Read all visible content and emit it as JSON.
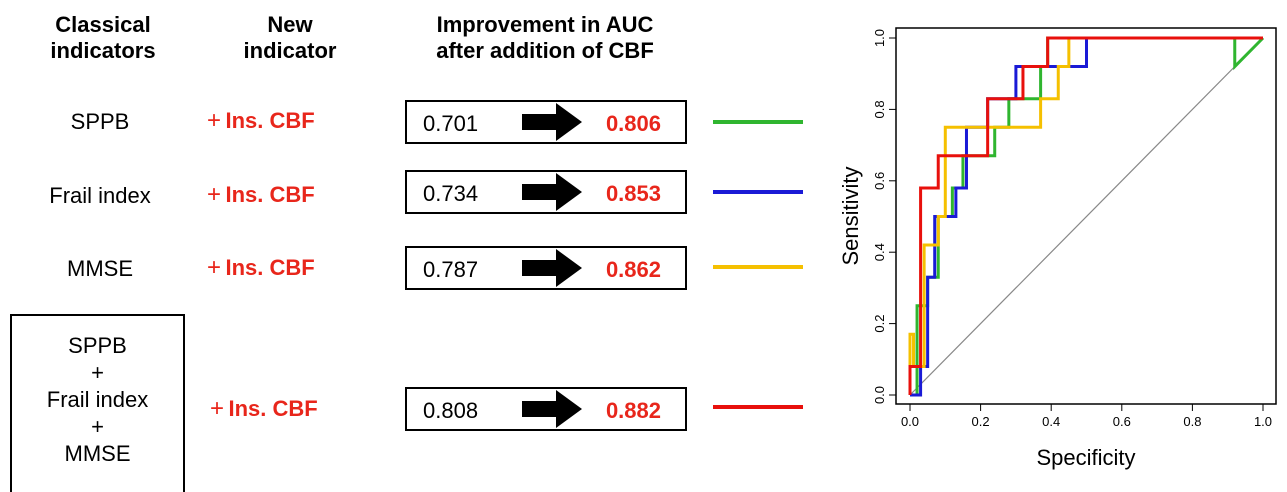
{
  "headers": {
    "classical": "Classical indicators",
    "classical_l1": "Classical",
    "classical_l2": "indicators",
    "new_l1": "New",
    "new_l2": "indicator",
    "improvement_l1": "Improvement in AUC",
    "improvement_l2": "after addition of CBF"
  },
  "rows": [
    {
      "indicator": "SPPB",
      "plus": "+",
      "new": "Ins. CBF",
      "auc_base": "0.701",
      "auc_new": "0.806",
      "color": "#2fb52f"
    },
    {
      "indicator": "Frail index",
      "plus": "+",
      "new": "Ins. CBF",
      "auc_base": "0.734",
      "auc_new": "0.853",
      "color": "#1a1ad6"
    },
    {
      "indicator": "MMSE",
      "plus": "+",
      "new": "Ins. CBF",
      "auc_base": "0.787",
      "auc_new": "0.862",
      "color": "#f5c000"
    },
    {
      "indicator_lines": [
        "SPPB",
        "+",
        "Frail index",
        "+",
        "MMSE"
      ],
      "plus": "+",
      "new": "Ins. CBF",
      "auc_base": "0.808",
      "auc_new": "0.882",
      "color": "#e8100c"
    }
  ],
  "chart_data": {
    "type": "line",
    "xlabel": "Specificity",
    "ylabel": "Sensitivity",
    "xlim": [
      0.0,
      1.0
    ],
    "ylim": [
      0.0,
      1.0
    ],
    "xticks": [
      "0.0",
      "0.2",
      "0.4",
      "0.6",
      "0.8",
      "1.0"
    ],
    "yticks": [
      "0.0",
      "0.2",
      "0.4",
      "0.6",
      "0.8",
      "1.0"
    ],
    "reference_line": {
      "x": [
        0,
        1
      ],
      "y": [
        0,
        1
      ],
      "color": "#888888"
    },
    "series": [
      {
        "color": "#2fb52f",
        "x": [
          0,
          0.02,
          0.02,
          0.05,
          0.05,
          0.08,
          0.08,
          0.12,
          0.12,
          0.15,
          0.15,
          0.24,
          0.24,
          0.28,
          0.28,
          0.37,
          0.37,
          0.39,
          0.39,
          0.92,
          0.92,
          1.0
        ],
        "y": [
          0,
          0,
          0.25,
          0.25,
          0.33,
          0.33,
          0.5,
          0.5,
          0.58,
          0.58,
          0.67,
          0.67,
          0.75,
          0.75,
          0.83,
          0.83,
          0.92,
          0.92,
          1.0,
          1.0,
          0.92,
          1.0
        ]
      },
      {
        "color": "#1a1ad6",
        "x": [
          0,
          0.03,
          0.03,
          0.05,
          0.05,
          0.07,
          0.07,
          0.1,
          0.1,
          0.13,
          0.13,
          0.16,
          0.16,
          0.22,
          0.22,
          0.3,
          0.3,
          0.34,
          0.34,
          0.37,
          0.37,
          0.5,
          0.5,
          1.0
        ],
        "y": [
          0,
          0,
          0.08,
          0.08,
          0.33,
          0.33,
          0.5,
          0.5,
          0.5,
          0.5,
          0.58,
          0.58,
          0.75,
          0.75,
          0.83,
          0.83,
          0.92,
          0.92,
          0.92,
          0.92,
          0.92,
          0.92,
          1.0,
          1.0
        ]
      },
      {
        "color": "#f5c000",
        "x": [
          0,
          0.0,
          0.01,
          0.01,
          0.04,
          0.04,
          0.08,
          0.08,
          0.1,
          0.1,
          0.16,
          0.16,
          0.2,
          0.2,
          0.37,
          0.37,
          0.42,
          0.42,
          0.45,
          0.45,
          1.0
        ],
        "y": [
          0,
          0.17,
          0.17,
          0.08,
          0.08,
          0.42,
          0.42,
          0.5,
          0.5,
          0.75,
          0.75,
          0.75,
          0.75,
          0.75,
          0.75,
          0.83,
          0.83,
          0.92,
          0.92,
          1.0,
          1.0
        ]
      },
      {
        "color": "#e8100c",
        "x": [
          0,
          0.0,
          0.03,
          0.03,
          0.08,
          0.08,
          0.16,
          0.16,
          0.22,
          0.22,
          0.32,
          0.32,
          0.36,
          0.36,
          0.39,
          0.39,
          1.0
        ],
        "y": [
          0,
          0.08,
          0.08,
          0.58,
          0.58,
          0.67,
          0.67,
          0.67,
          0.67,
          0.83,
          0.83,
          0.92,
          0.92,
          0.92,
          0.92,
          1.0,
          1.0
        ]
      }
    ]
  }
}
